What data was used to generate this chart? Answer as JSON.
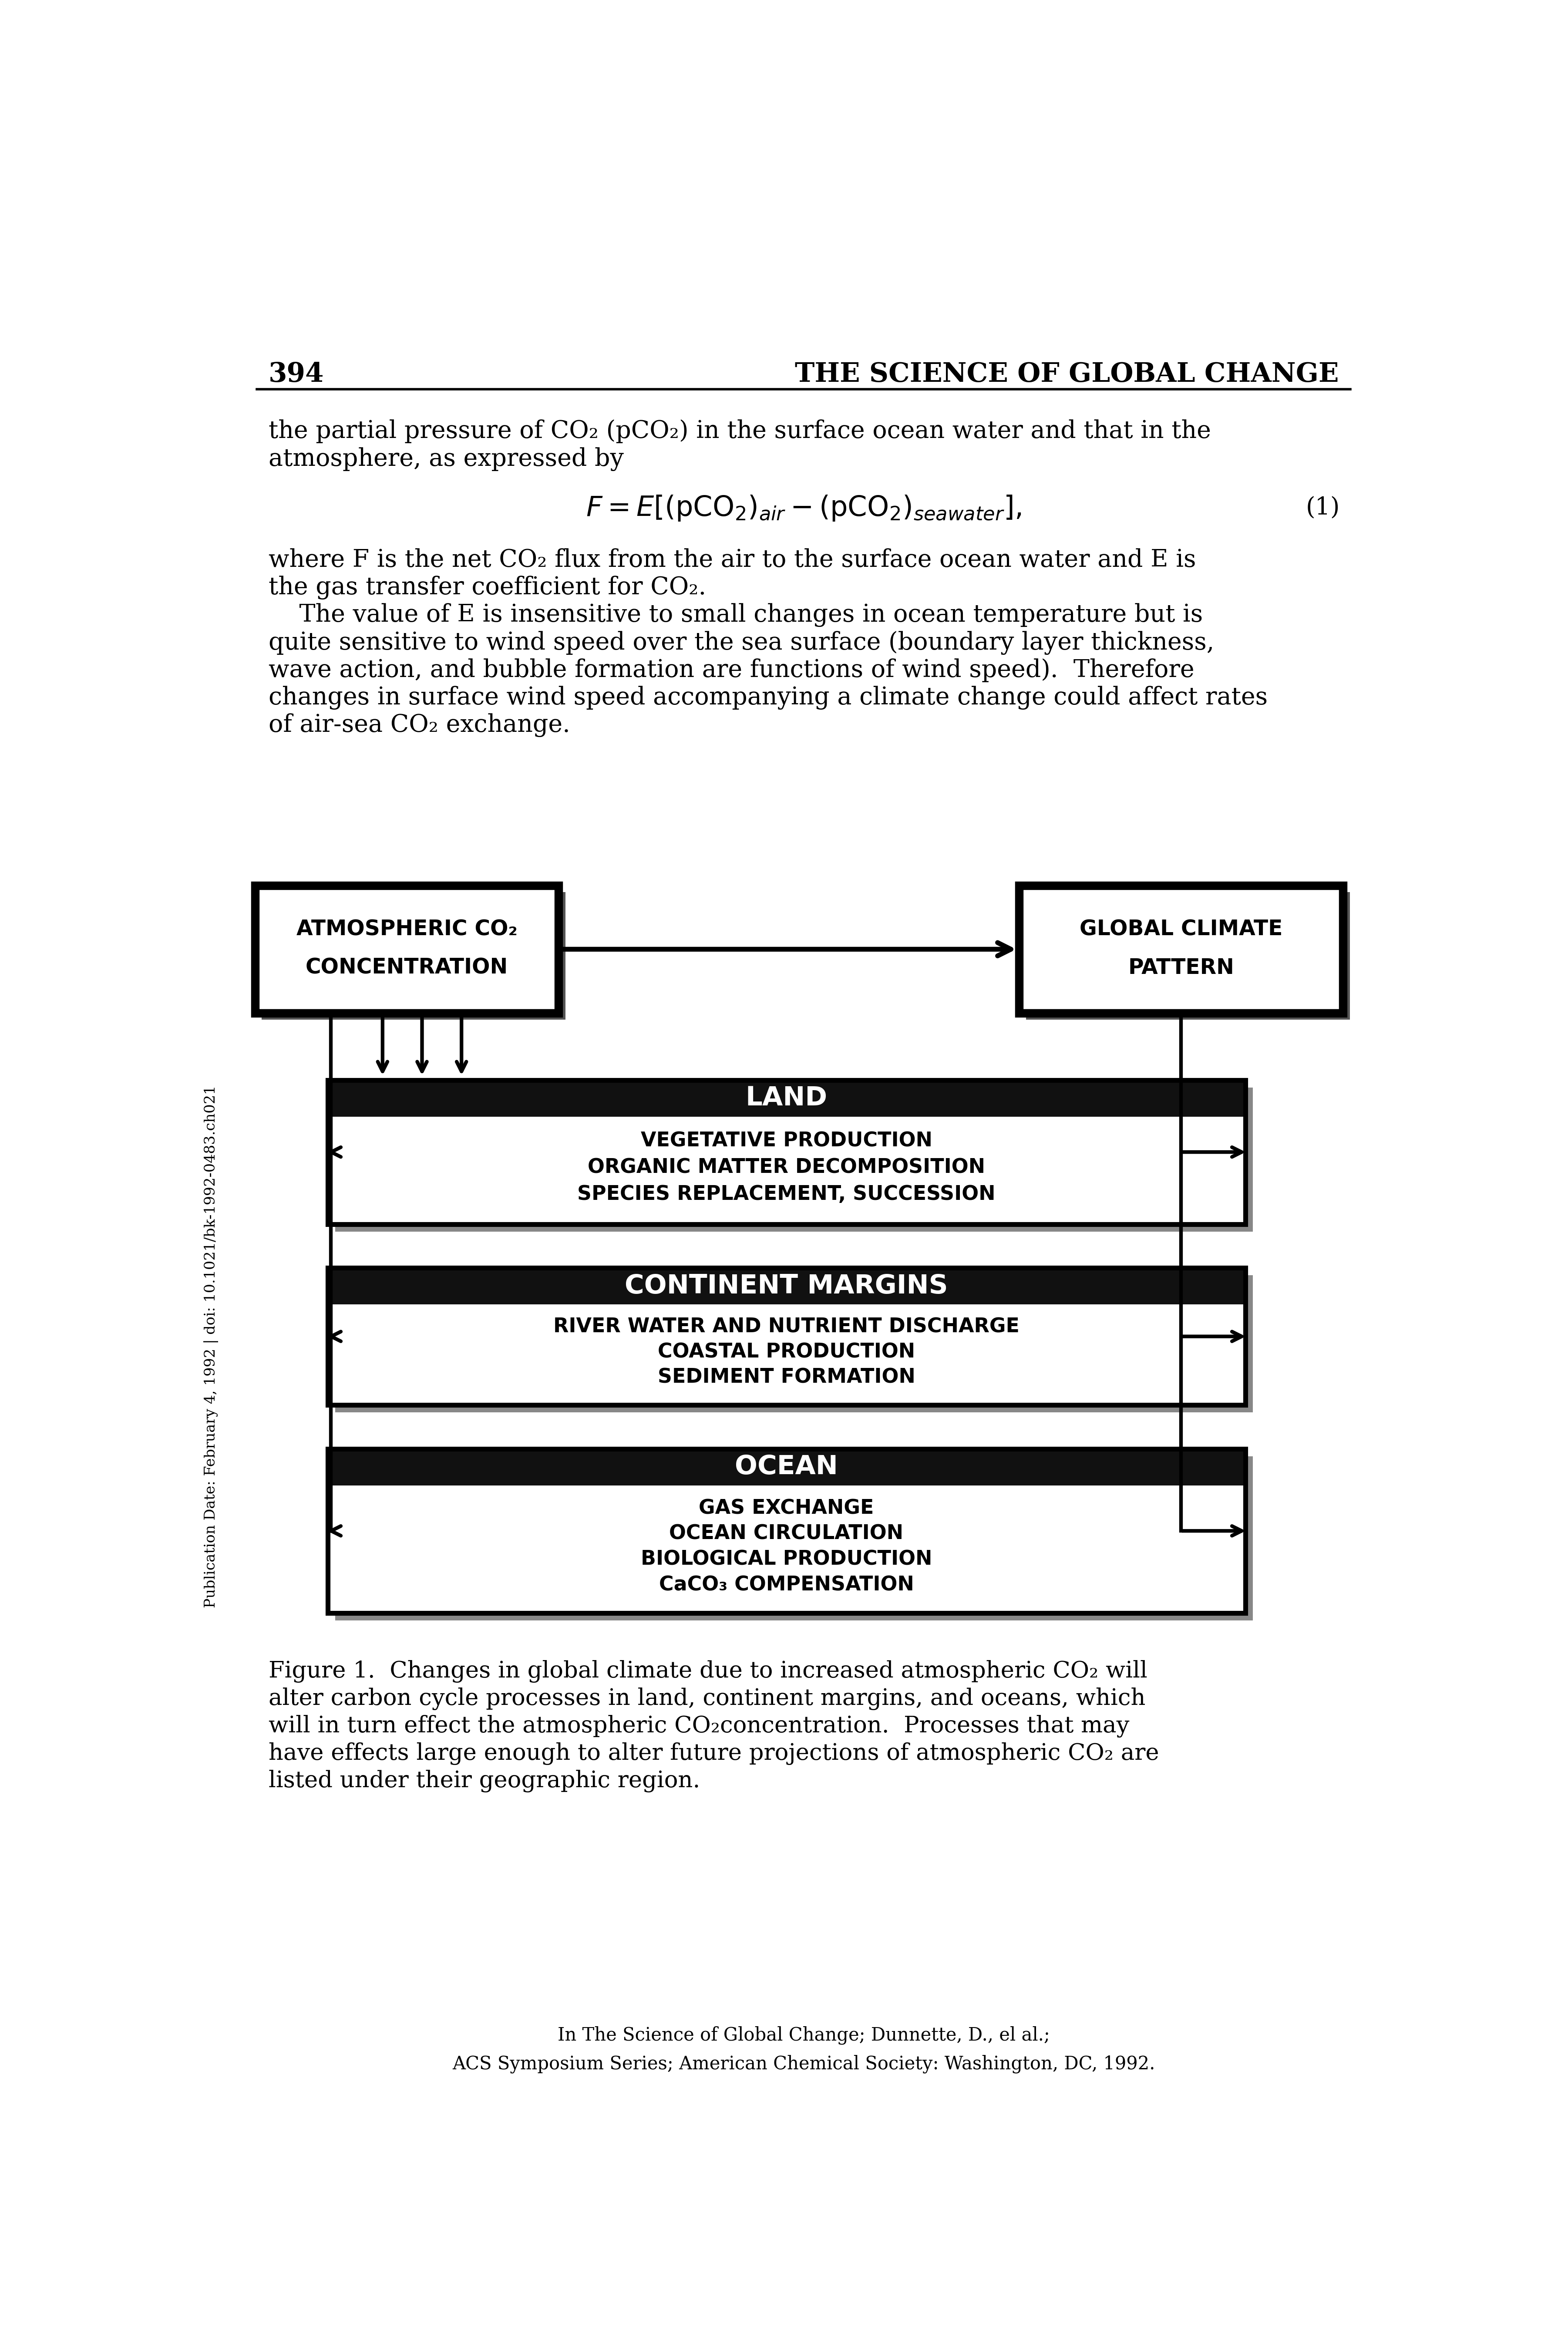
{
  "page_number": "394",
  "header_right": "THE SCIENCE OF GLOBAL CHANGE",
  "body_text1": [
    "the partial pressure of CO₂ (pCO₂) in the surface ocean water and that in the",
    "atmosphere, as expressed by"
  ],
  "body_text2": [
    "where F is the net CO₂ flux from the air to the surface ocean water and E is",
    "the gas transfer coefficient for CO₂.",
    "    The value of E is insensitive to small changes in ocean temperature but is",
    "quite sensitive to wind speed over the sea surface (boundary layer thickness,",
    "wave action, and bubble formation are functions of wind speed).  Therefore",
    "changes in surface wind speed accompanying a climate change could affect rates",
    "of air-sea CO₂ exchange."
  ],
  "side_label": "Publication Date: February 4, 1992 | doi: 10.1021/bk-1992-0483.ch021",
  "figure_caption_line1": "Figure 1.  Changes in global climate due to increased atmospheric CO₂ will",
  "figure_caption_line2": "alter carbon cycle processes in land, continent margins, and oceans, which",
  "figure_caption_line3": "will in turn effect the atmospheric CO₂concentration.  Processes that may",
  "figure_caption_line4": "have effects large enough to alter future projections of atmospheric CO₂ are",
  "figure_caption_line5": "listed under their geographic region.",
  "footer_line1": "In The Science of Global Change; Dunnette, D., el al.;",
  "footer_line2": "ACS Symposium Series; American Chemical Society: Washington, DC, 1992.",
  "bg_color": "#ffffff",
  "text_color": "#000000"
}
